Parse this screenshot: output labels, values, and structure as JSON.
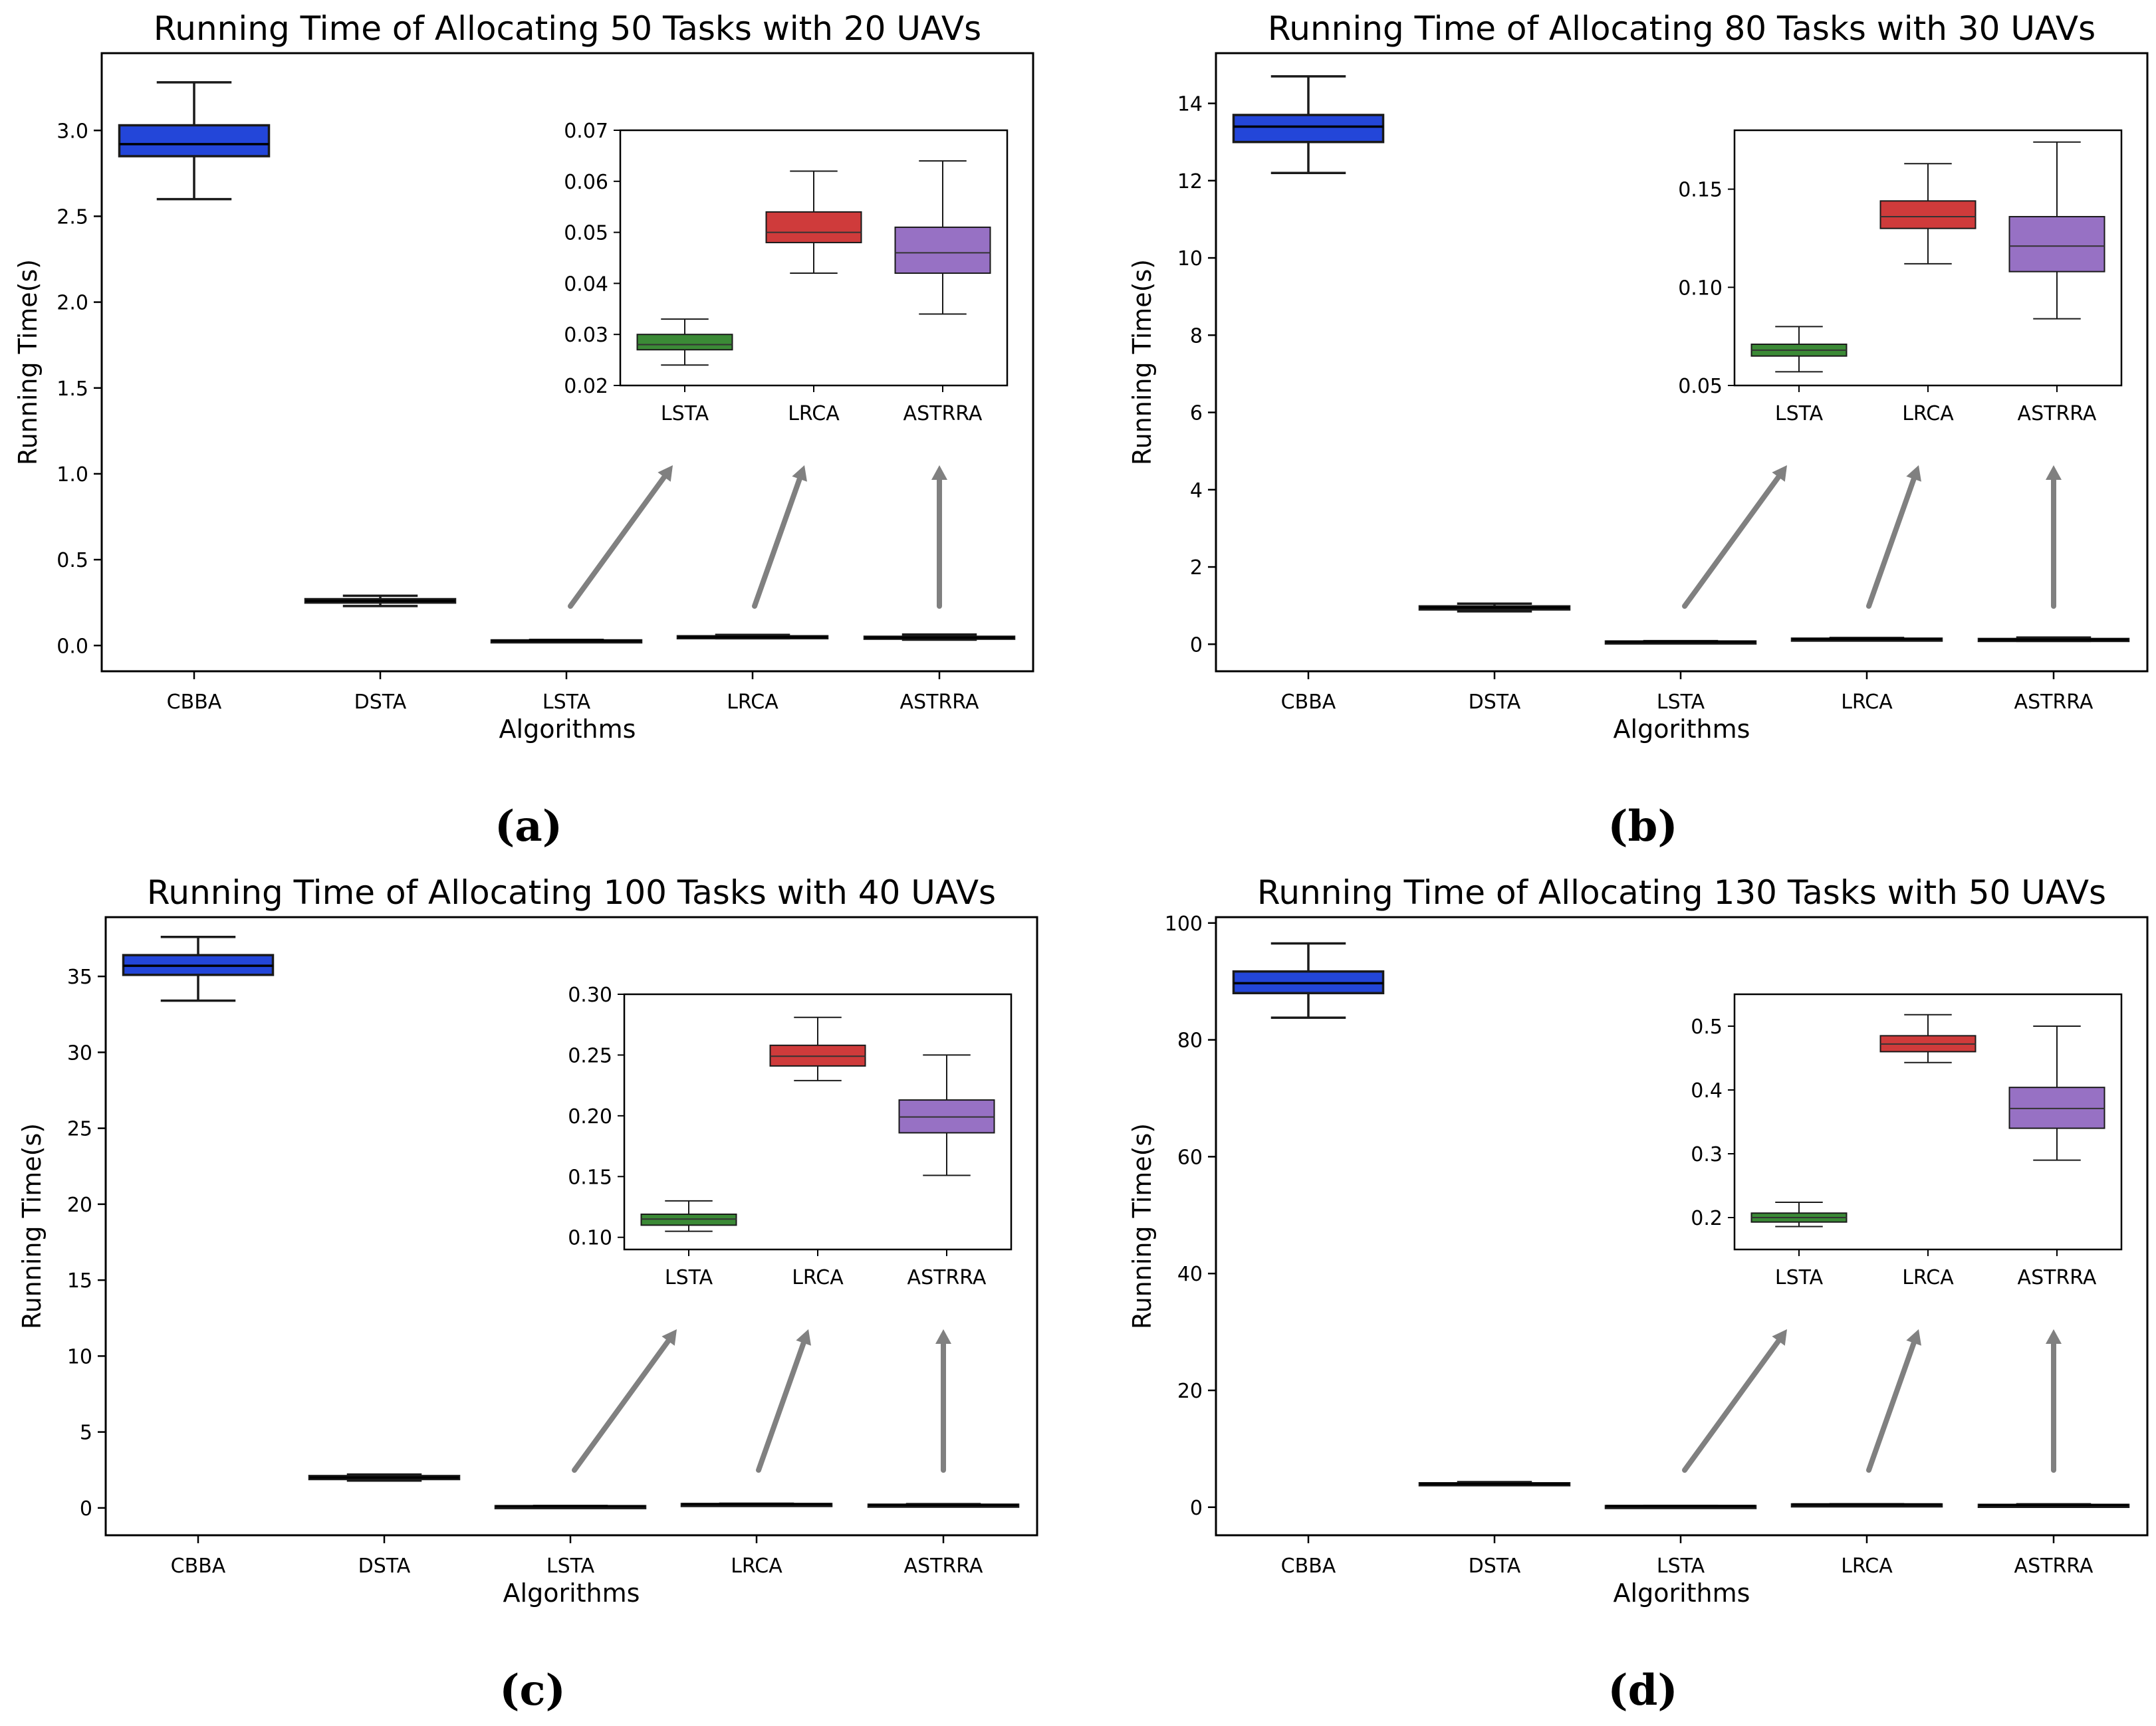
{
  "colors": {
    "CBBA": "#2346d9",
    "DSTA": "#1a1a1a",
    "LSTA": "#3b8a36",
    "LRCA": "#cf3b3b",
    "ASTRRA": "#9771c4",
    "arrow": "#808080"
  },
  "chart_data": [
    {
      "type": "box",
      "panel": "a",
      "caption_letter": "a",
      "caption": "(a)",
      "title": "Running Time of Allocating 50 Tasks with 20 UAVs",
      "xlabel": "Algorithms",
      "ylabel": "Running Time(s)",
      "categories": [
        "CBBA",
        "DSTA",
        "LSTA",
        "LRCA",
        "ASTRRA"
      ],
      "ylim": [
        -0.15,
        3.45
      ],
      "yticks": [
        0.0,
        0.5,
        1.0,
        1.5,
        2.0,
        2.5,
        3.0
      ],
      "ytick_labels": [
        "0.0",
        "0.5",
        "1.0",
        "1.5",
        "2.0",
        "2.5",
        "3.0"
      ],
      "boxes": [
        {
          "name": "CBBA",
          "min": 2.6,
          "q1": 2.85,
          "median": 2.92,
          "q3": 3.03,
          "max": 3.28
        },
        {
          "name": "DSTA",
          "min": 0.23,
          "q1": 0.25,
          "median": 0.26,
          "q3": 0.27,
          "max": 0.29
        },
        {
          "name": "LSTA",
          "min": 0.024,
          "q1": 0.027,
          "median": 0.028,
          "q3": 0.03,
          "max": 0.033
        },
        {
          "name": "LRCA",
          "min": 0.042,
          "q1": 0.048,
          "median": 0.05,
          "q3": 0.054,
          "max": 0.062
        },
        {
          "name": "ASTRRA",
          "min": 0.034,
          "q1": 0.042,
          "median": 0.046,
          "q3": 0.051,
          "max": 0.064
        }
      ],
      "inset": {
        "categories": [
          "LSTA",
          "LRCA",
          "ASTRRA"
        ],
        "ylim": [
          0.02,
          0.07
        ],
        "yticks": [
          0.02,
          0.03,
          0.04,
          0.05,
          0.06,
          0.07
        ],
        "ytick_labels": [
          "0.02",
          "0.03",
          "0.04",
          "0.05",
          "0.06",
          "0.07"
        ]
      }
    },
    {
      "type": "box",
      "panel": "b",
      "caption_letter": "b",
      "caption": "(b)",
      "title": "Running Time of Allocating 80 Tasks with 30 UAVs",
      "xlabel": "Algorithms",
      "ylabel": "Running Time(s)",
      "categories": [
        "CBBA",
        "DSTA",
        "LSTA",
        "LRCA",
        "ASTRRA"
      ],
      "ylim": [
        -0.7,
        15.3
      ],
      "yticks": [
        0,
        2,
        4,
        6,
        8,
        10,
        12,
        14
      ],
      "ytick_labels": [
        "0",
        "2",
        "4",
        "6",
        "8",
        "10",
        "12",
        "14"
      ],
      "boxes": [
        {
          "name": "CBBA",
          "min": 12.2,
          "q1": 13.0,
          "median": 13.4,
          "q3": 13.7,
          "max": 14.7
        },
        {
          "name": "DSTA",
          "min": 0.85,
          "q1": 0.9,
          "median": 0.95,
          "q3": 0.98,
          "max": 1.05
        },
        {
          "name": "LSTA",
          "min": 0.057,
          "q1": 0.065,
          "median": 0.068,
          "q3": 0.071,
          "max": 0.08
        },
        {
          "name": "LRCA",
          "min": 0.112,
          "q1": 0.13,
          "median": 0.136,
          "q3": 0.144,
          "max": 0.163
        },
        {
          "name": "ASTRRA",
          "min": 0.084,
          "q1": 0.108,
          "median": 0.121,
          "q3": 0.136,
          "max": 0.174
        }
      ],
      "inset": {
        "categories": [
          "LSTA",
          "LRCA",
          "ASTRRA"
        ],
        "ylim": [
          0.05,
          0.18
        ],
        "yticks": [
          0.05,
          0.1,
          0.15
        ],
        "ytick_labels": [
          "0.05",
          "0.10",
          "0.15"
        ]
      }
    },
    {
      "type": "box",
      "panel": "c",
      "caption_letter": "c",
      "caption": "(c)",
      "title": "Running Time of Allocating 100 Tasks with 40 UAVs",
      "xlabel": "Algorithms",
      "ylabel": "Running Time(s)",
      "categories": [
        "CBBA",
        "DSTA",
        "LSTA",
        "LRCA",
        "ASTRRA"
      ],
      "ylim": [
        -1.8,
        38.9
      ],
      "yticks": [
        0,
        5,
        10,
        15,
        20,
        25,
        30,
        35
      ],
      "ytick_labels": [
        "0",
        "5",
        "10",
        "15",
        "20",
        "25",
        "30",
        "35"
      ],
      "boxes": [
        {
          "name": "CBBA",
          "min": 33.4,
          "q1": 35.1,
          "median": 35.7,
          "q3": 36.4,
          "max": 37.6
        },
        {
          "name": "DSTA",
          "min": 1.8,
          "q1": 1.9,
          "median": 2.0,
          "q3": 2.1,
          "max": 2.2
        },
        {
          "name": "LSTA",
          "min": 0.105,
          "q1": 0.11,
          "median": 0.115,
          "q3": 0.119,
          "max": 0.13
        },
        {
          "name": "LRCA",
          "min": 0.229,
          "q1": 0.241,
          "median": 0.249,
          "q3": 0.258,
          "max": 0.281
        },
        {
          "name": "ASTRRA",
          "min": 0.151,
          "q1": 0.186,
          "median": 0.199,
          "q3": 0.213,
          "max": 0.25
        }
      ],
      "inset": {
        "categories": [
          "LSTA",
          "LRCA",
          "ASTRRA"
        ],
        "ylim": [
          0.09,
          0.3
        ],
        "yticks": [
          0.1,
          0.15,
          0.2,
          0.25,
          0.3
        ],
        "ytick_labels": [
          "0.10",
          "0.15",
          "0.20",
          "0.25",
          "0.30"
        ]
      }
    },
    {
      "type": "box",
      "panel": "d",
      "caption_letter": "d",
      "caption": "(d)",
      "title": "Running Time of Allocating 130 Tasks with 50 UAVs",
      "xlabel": "Algorithms",
      "ylabel": "Running Time(s)",
      "categories": [
        "CBBA",
        "DSTA",
        "LSTA",
        "LRCA",
        "ASTRRA"
      ],
      "ylim": [
        -4.8,
        101
      ],
      "yticks": [
        0,
        20,
        40,
        60,
        80,
        100
      ],
      "ytick_labels": [
        "0",
        "20",
        "40",
        "60",
        "80",
        "100"
      ],
      "boxes": [
        {
          "name": "CBBA",
          "min": 83.8,
          "q1": 88.0,
          "median": 89.7,
          "q3": 91.7,
          "max": 96.5
        },
        {
          "name": "DSTA",
          "min": 3.8,
          "q1": 3.9,
          "median": 4.0,
          "q3": 4.1,
          "max": 4.3
        },
        {
          "name": "LSTA",
          "min": 0.186,
          "q1": 0.193,
          "median": 0.2,
          "q3": 0.207,
          "max": 0.224
        },
        {
          "name": "LRCA",
          "min": 0.443,
          "q1": 0.46,
          "median": 0.472,
          "q3": 0.485,
          "max": 0.518
        },
        {
          "name": "ASTRRA",
          "min": 0.29,
          "q1": 0.34,
          "median": 0.371,
          "q3": 0.404,
          "max": 0.5
        }
      ],
      "inset": {
        "categories": [
          "LSTA",
          "LRCA",
          "ASTRRA"
        ],
        "ylim": [
          0.15,
          0.55
        ],
        "yticks": [
          0.2,
          0.3,
          0.4,
          0.5
        ],
        "ytick_labels": [
          "0.2",
          "0.3",
          "0.4",
          "0.5"
        ]
      }
    }
  ]
}
